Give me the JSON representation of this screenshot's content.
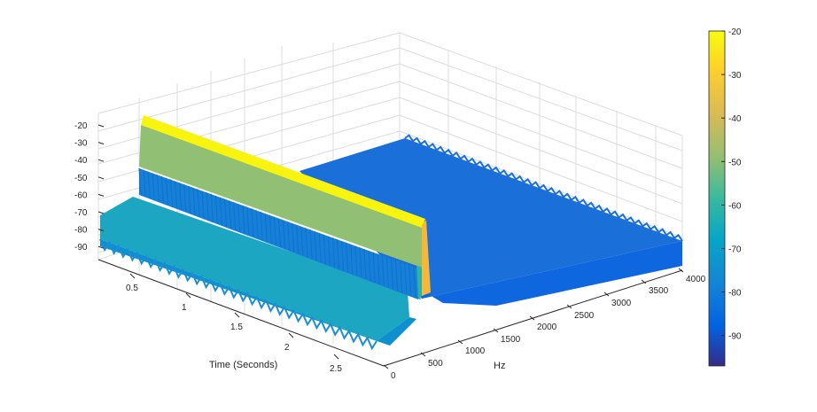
{
  "chart_data": {
    "type": "surface",
    "title": "",
    "xlabel": "Hz",
    "ylabel": "Time (Seconds)",
    "zlabel": "",
    "x_ticks": [
      "0",
      "500",
      "1000",
      "1500",
      "2000",
      "2500",
      "3000",
      "3500",
      "4000"
    ],
    "y_ticks": [
      "0.5",
      "1",
      "1.5",
      "2",
      "2.5"
    ],
    "z_ticks": [
      "-20",
      "-30",
      "-40",
      "-50",
      "-60",
      "-70",
      "-80",
      "-90"
    ],
    "xlim": [
      0,
      4000
    ],
    "ylim": [
      0,
      2.75
    ],
    "zlim": [
      -97,
      -20
    ],
    "colormap": "parula",
    "colorbar": {
      "ticks": [
        "-20",
        "-30",
        "-40",
        "-50",
        "-60",
        "-70",
        "-80",
        "-90"
      ],
      "range": [
        -97,
        -20
      ],
      "position": "right"
    },
    "grid": true,
    "surface_description": {
      "tone_frequency_hz": 500,
      "tone_start_s": 0.0,
      "tone_end_s": 2.6,
      "tone_peak_db": -21,
      "tone_plateau_db": -48,
      "low_freq_noise_db": -72,
      "high_freq_floor_db": -84,
      "high_freq_ripple_db": -78
    }
  }
}
